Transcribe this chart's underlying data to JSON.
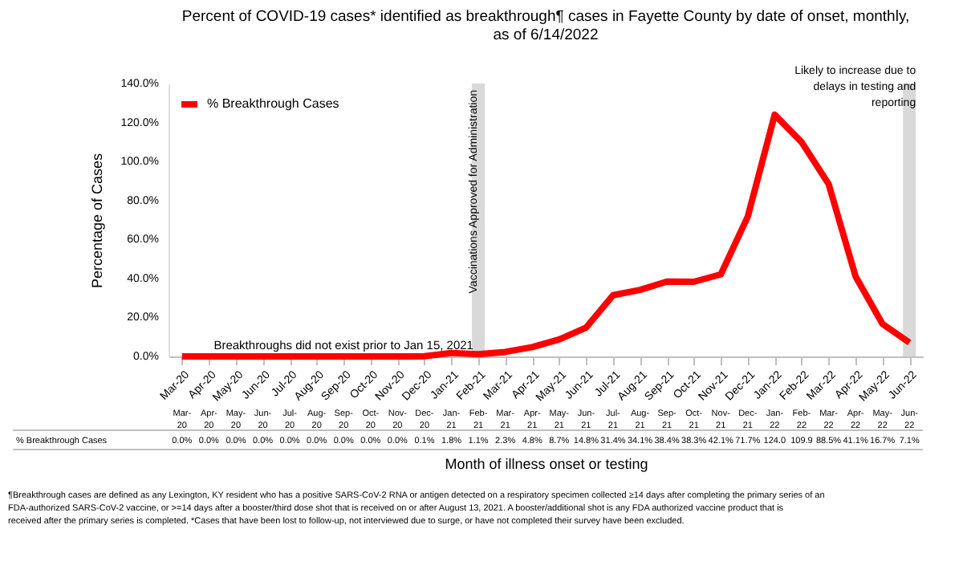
{
  "chart_data": {
    "type": "line",
    "title": "Percent of COVID-19 cases* identified as breakthrough¶ cases in Fayette County by date of onset, monthly, as of 6/14/2022",
    "xlabel": "Month of illness onset or testing",
    "ylabel": "Percentage of Cases",
    "categories": [
      "Mar-20",
      "Apr-20",
      "May-20",
      "Jun-20",
      "Jul-20",
      "Aug-20",
      "Sep-20",
      "Oct-20",
      "Nov-20",
      "Dec-20",
      "Jan-21",
      "Feb-21",
      "Mar-21",
      "Apr-21",
      "May-21",
      "Jun-21",
      "Jul-21",
      "Aug-21",
      "Sep-21",
      "Oct-21",
      "Nov-21",
      "Dec-21",
      "Jan-22",
      "Feb-22",
      "Mar-22",
      "Apr-22",
      "May-22",
      "Jun-22"
    ],
    "series": [
      {
        "name": "% Breakthrough Cases",
        "color": "#ff0000",
        "values": [
          0.0,
          0.0,
          0.0,
          0.0,
          0.0,
          0.0,
          0.0,
          0.0,
          0.0,
          0.1,
          1.8,
          1.1,
          2.3,
          4.8,
          8.7,
          14.8,
          31.4,
          34.1,
          38.4,
          38.3,
          42.1,
          71.7,
          124.0,
          109.9,
          88.5,
          41.1,
          16.7,
          7.1
        ],
        "value_labels": [
          "0.0%",
          "0.0%",
          "0.0%",
          "0.0%",
          "0.0%",
          "0.0%",
          "0.0%",
          "0.0%",
          "0.0%",
          "0.1%",
          "1.8%",
          "1.1%",
          "2.3%",
          "4.8%",
          "8.7%",
          "14.8%",
          "31.4%",
          "34.1%",
          "38.4%",
          "38.3%",
          "42.1%",
          "71.7%",
          "124.0",
          "109.9",
          "88.5%",
          "41.1%",
          "16.7%",
          "7.1%"
        ]
      }
    ],
    "ylim": [
      0,
      140
    ],
    "yticks": [
      {
        "value": 0,
        "label": "0.0%"
      },
      {
        "value": 20,
        "label": "20.0%"
      },
      {
        "value": 40,
        "label": "40.0%"
      },
      {
        "value": 60,
        "label": "60.0%"
      },
      {
        "value": 80,
        "label": "80.0%"
      },
      {
        "value": 100,
        "label": "100.0%"
      },
      {
        "value": 120,
        "label": "120.0%"
      },
      {
        "value": 140,
        "label": "140.0%"
      }
    ],
    "bands": [
      {
        "axis": "x",
        "from": "Feb-21",
        "to": "Feb-21",
        "label": "Vaccinations Approved for Administration",
        "color": "#d9d9d9"
      },
      {
        "axis": "x",
        "from": "Jun-22",
        "to": "Jun-22",
        "label": "Likely to increase due to delays in testing and reporting",
        "color": "#d9d9d9"
      }
    ],
    "annotations": [
      {
        "text": "Breakthroughs did not exist prior to Jan 15, 2021",
        "x": "Sep-20",
        "y": 2
      },
      "¶Breakthrough cases are defined as any Lexington, KY resident who has a positive SARS-CoV-2 RNA or antigen detected on a respiratory specimen collected ≥14 days after completing the primary series of an FDA-authorized SARS-CoV-2 vaccine, or >=14 days after a booster/third dose shot that is received on or after August 13, 2021.  A booster/additional shot is any FDA authorized vaccine product that is received after the primary series is completed. *Cases that have been lost to follow-up, not interviewed due to surge, or have not completed their survey have been excluded."
    ],
    "legend": "top left",
    "grid": false,
    "marker": "none",
    "line_style": "solid"
  }
}
